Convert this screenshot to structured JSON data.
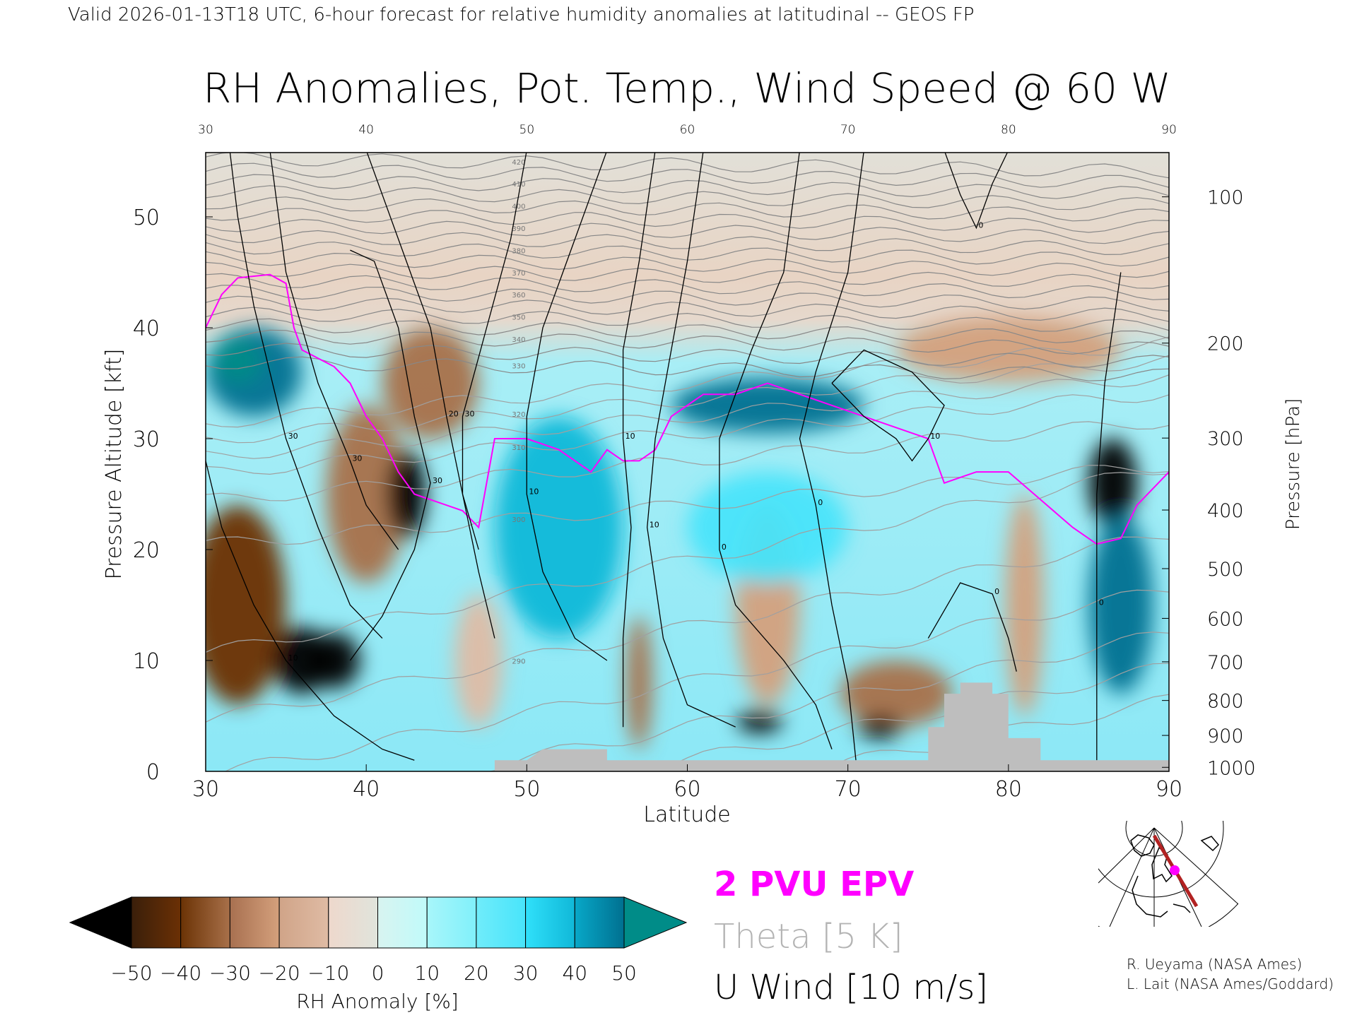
{
  "header": {
    "subtitle": "Valid 2026-01-13T18 UTC, 6-hour forecast for relative humidity anomalies at latitudinal -- GEOS FP"
  },
  "chart_data": {
    "type": "heatmap",
    "title": "RH Anomalies, Pot. Temp., Wind Speed @ 60 W",
    "xlabel": "Latitude",
    "ylabel": "Pressure Altitude [kft]",
    "y2label": "Pressure [hPa]",
    "xlim": [
      30,
      90
    ],
    "ylim": [
      0,
      55.8
    ],
    "x_ticks": [
      "30",
      "40",
      "50",
      "60",
      "70",
      "80",
      "90"
    ],
    "x_ticks_top": [
      "30",
      "40",
      "50",
      "60",
      "70",
      "80",
      "90"
    ],
    "y_ticks": [
      "0",
      "10",
      "20",
      "30",
      "40",
      "50"
    ],
    "y2_ticks": [
      "100",
      "200",
      "300",
      "400",
      "500",
      "600",
      "700",
      "800",
      "900",
      "1000"
    ],
    "colorbar": {
      "label": "RH Anomaly [%]",
      "ticks": [
        "−50",
        "−40",
        "−30",
        "−20",
        "−10",
        "0",
        "10",
        "20",
        "30",
        "40",
        "50"
      ],
      "colors": [
        [
          "#3a1f0a",
          "#6b3005"
        ],
        [
          "#6b3305",
          "#a8704a"
        ],
        [
          "#a87050",
          "#d4a07c"
        ],
        [
          "#d0a488",
          "#dfbba4"
        ],
        [
          "#eed8cc",
          "#e0e4dc"
        ],
        [
          "#d8f4f0",
          "#c0fafa"
        ],
        [
          "#a8f6fa",
          "#80f0fa"
        ],
        [
          "#70ecfa",
          "#48e4fa"
        ],
        [
          "#30e0fa",
          "#10b8d8"
        ],
        [
          "#08a8c8",
          "#007090"
        ]
      ],
      "under_color": "#000000",
      "over_color": "#008c88"
    },
    "legend": {
      "pv": "2 PVU EPV",
      "theta": "Theta [5 K]",
      "wind": "U Wind [10 m/s]",
      "pv_color": "#ff00ff",
      "theta_color": "#b4b4b4",
      "wind_color": "#000000"
    },
    "theta_levels": [
      270,
      275,
      280,
      285,
      290,
      295,
      300,
      305,
      310,
      315,
      320,
      325,
      330,
      335,
      340,
      345,
      350,
      355,
      360,
      365,
      370,
      375,
      380,
      385,
      390,
      395,
      400,
      405,
      410,
      415,
      420
    ],
    "theta_labels": [
      "290",
      "300",
      "310",
      "320",
      "330",
      "340",
      "350",
      "360",
      "370",
      "380",
      "390",
      "400",
      "410",
      "420"
    ],
    "anomaly_features": [
      {
        "lat": 32,
        "kft": 15,
        "value": -45
      },
      {
        "lat": 36,
        "kft": 10,
        "value": -55
      },
      {
        "lat": 38,
        "kft": 10,
        "value": -55
      },
      {
        "lat": 40,
        "kft": 25,
        "value": -40
      },
      {
        "lat": 42.5,
        "kft": 25,
        "value": -55
      },
      {
        "lat": 44,
        "kft": 35,
        "value": -35
      },
      {
        "lat": 33,
        "kft": 36,
        "value": 45
      },
      {
        "lat": 32,
        "kft": 37,
        "value": 55
      },
      {
        "lat": 52,
        "kft": 22,
        "value": 30
      },
      {
        "lat": 47,
        "kft": 10,
        "value": -20
      },
      {
        "lat": 57,
        "kft": 8,
        "value": -35
      },
      {
        "lat": 65,
        "kft": 15,
        "value": -25
      },
      {
        "lat": 64.5,
        "kft": 4.5,
        "value": -55
      },
      {
        "lat": 73,
        "kft": 7,
        "value": -35
      },
      {
        "lat": 72,
        "kft": 4,
        "value": -55
      },
      {
        "lat": 65,
        "kft": 33,
        "value": 40
      },
      {
        "lat": 81,
        "kft": 15,
        "value": -30
      },
      {
        "lat": 86.5,
        "kft": 26,
        "value": -60
      },
      {
        "lat": 87,
        "kft": 15,
        "value": 40
      },
      {
        "lat": 80,
        "kft": 38,
        "value": -30
      },
      {
        "lat": 65,
        "kft": 22,
        "value": 20
      }
    ],
    "pv_contour": [
      [
        30,
        40
      ],
      [
        31,
        43
      ],
      [
        32,
        44.5
      ],
      [
        34,
        44.8
      ],
      [
        35,
        44
      ],
      [
        35.5,
        40
      ],
      [
        36,
        38
      ],
      [
        38,
        36.5
      ],
      [
        39,
        35
      ],
      [
        40,
        32
      ],
      [
        41,
        30
      ],
      [
        42,
        27
      ],
      [
        43,
        25
      ],
      [
        45,
        24
      ],
      [
        46,
        23.5
      ],
      [
        47,
        22
      ],
      [
        47.5,
        26
      ],
      [
        48,
        30
      ],
      [
        50,
        30
      ],
      [
        52,
        29
      ],
      [
        54,
        27
      ],
      [
        55,
        29
      ],
      [
        56,
        28
      ],
      [
        57,
        28
      ],
      [
        58,
        29
      ],
      [
        59,
        32
      ],
      [
        61,
        34
      ],
      [
        63,
        34
      ],
      [
        65,
        35
      ],
      [
        67,
        34
      ],
      [
        69,
        33
      ],
      [
        71,
        32
      ],
      [
        73,
        31
      ],
      [
        75,
        30
      ],
      [
        76,
        26
      ],
      [
        78,
        27
      ],
      [
        80,
        27
      ],
      [
        82,
        24.5
      ],
      [
        84,
        22
      ],
      [
        85.5,
        20.5
      ],
      [
        87,
        21
      ],
      [
        88,
        24
      ],
      [
        90,
        27
      ]
    ],
    "u_wind_contours": [
      {
        "label": "30",
        "points": [
          [
            31.5,
            56
          ],
          [
            32,
            50
          ],
          [
            33,
            42
          ],
          [
            35,
            30
          ],
          [
            37,
            22
          ],
          [
            39,
            15
          ],
          [
            41,
            12
          ]
        ]
      },
      {
        "label": "30",
        "points": [
          [
            34,
            56
          ],
          [
            35,
            45
          ],
          [
            37,
            35
          ],
          [
            39,
            28
          ],
          [
            40,
            24
          ],
          [
            42,
            20
          ]
        ]
      },
      {
        "label": "30",
        "points": [
          [
            39,
            47
          ],
          [
            40.5,
            46
          ],
          [
            42,
            40
          ],
          [
            43,
            32
          ],
          [
            44,
            26
          ],
          [
            43,
            20
          ],
          [
            41,
            14
          ],
          [
            39,
            10
          ]
        ]
      },
      {
        "label": "20",
        "points": [
          [
            40,
            56
          ],
          [
            42,
            48
          ],
          [
            44,
            40
          ],
          [
            45,
            32
          ],
          [
            46,
            25
          ],
          [
            47,
            18
          ],
          [
            48,
            12
          ]
        ]
      },
      {
        "label": "10",
        "points": [
          [
            30,
            28
          ],
          [
            31,
            22
          ],
          [
            33,
            15
          ],
          [
            35,
            10
          ],
          [
            38,
            5
          ],
          [
            41,
            2
          ],
          [
            43,
            1
          ]
        ]
      },
      {
        "label": "30",
        "points": [
          [
            50,
            56
          ],
          [
            49,
            48
          ],
          [
            47.5,
            40
          ],
          [
            46,
            32
          ],
          [
            46,
            25
          ],
          [
            47,
            20
          ]
        ]
      },
      {
        "label": "10",
        "points": [
          [
            55,
            56
          ],
          [
            53,
            48
          ],
          [
            51,
            40
          ],
          [
            50,
            32
          ],
          [
            50,
            25
          ],
          [
            51,
            18
          ],
          [
            53,
            12
          ],
          [
            55,
            10
          ]
        ]
      },
      {
        "label": "10",
        "points": [
          [
            58,
            56
          ],
          [
            57,
            46
          ],
          [
            56,
            38
          ],
          [
            56,
            30
          ],
          [
            56.5,
            22
          ],
          [
            56,
            12
          ],
          [
            56,
            4
          ]
        ]
      },
      {
        "label": "10",
        "points": [
          [
            61,
            56
          ],
          [
            60,
            46
          ],
          [
            59,
            38
          ],
          [
            58,
            30
          ],
          [
            57.5,
            22
          ],
          [
            58.5,
            12
          ],
          [
            60,
            6
          ],
          [
            63,
            4
          ]
        ]
      },
      {
        "label": "0",
        "points": [
          [
            67,
            56
          ],
          [
            66,
            45
          ],
          [
            64,
            38
          ],
          [
            62,
            30
          ],
          [
            62,
            20
          ],
          [
            63,
            15
          ],
          [
            66,
            10
          ],
          [
            68,
            6
          ],
          [
            69,
            2
          ]
        ]
      },
      {
        "label": "10",
        "points": [
          [
            69,
            35
          ],
          [
            71,
            32
          ],
          [
            73,
            30
          ],
          [
            74,
            28
          ],
          [
            75,
            30
          ],
          [
            76,
            33
          ],
          [
            74,
            36
          ],
          [
            71,
            38
          ],
          [
            69,
            35
          ]
        ]
      },
      {
        "label": "0",
        "points": [
          [
            71,
            56
          ],
          [
            70,
            45
          ],
          [
            68,
            36
          ],
          [
            67,
            30
          ],
          [
            68,
            24
          ],
          [
            69,
            15
          ],
          [
            70,
            8
          ],
          [
            70.5,
            1
          ]
        ]
      },
      {
        "label": "0",
        "points": [
          [
            75,
            12
          ],
          [
            77,
            17
          ],
          [
            79,
            16
          ],
          [
            80,
            12
          ],
          [
            80.5,
            9
          ]
        ]
      },
      {
        "label": "0",
        "points": [
          [
            87,
            45
          ],
          [
            86,
            35
          ],
          [
            85.5,
            25
          ],
          [
            85.5,
            15
          ],
          [
            85.5,
            5
          ],
          [
            85.5,
            1
          ]
        ]
      },
      {
        "label": "0",
        "points": [
          [
            76,
            56
          ],
          [
            77,
            52
          ],
          [
            78,
            49
          ],
          [
            79,
            53
          ],
          [
            80,
            56
          ]
        ]
      }
    ],
    "topography": [
      [
        48,
        0
      ],
      [
        48,
        1
      ],
      [
        50,
        1
      ],
      [
        51,
        2
      ],
      [
        55,
        2
      ],
      [
        55,
        1
      ],
      [
        60,
        1
      ],
      [
        75,
        1
      ],
      [
        75,
        4
      ],
      [
        76,
        4
      ],
      [
        76,
        7
      ],
      [
        77,
        7
      ],
      [
        77,
        8
      ],
      [
        79,
        8
      ],
      [
        79,
        7
      ],
      [
        80,
        7
      ],
      [
        80,
        3
      ],
      [
        82,
        3
      ],
      [
        82,
        1
      ],
      [
        90,
        1
      ],
      [
        90,
        0
      ]
    ]
  },
  "inset_map": {
    "section_color": "#b22222",
    "point_color": "#ff00ff"
  },
  "credits": {
    "line1": "R. Ueyama (NASA Ames)",
    "line2": "L. Lait (NASA Ames/Goddard)"
  }
}
